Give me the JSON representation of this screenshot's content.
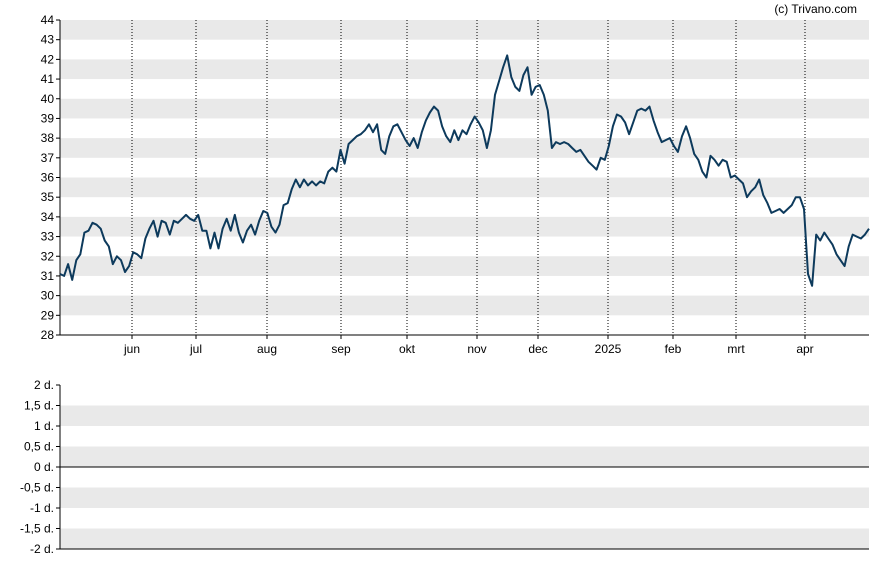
{
  "credit": "(c) Trivano.com",
  "colors": {
    "band": "#e9e9e9",
    "line": "#0d3a5c",
    "axis": "#000000",
    "grid": "#000000"
  },
  "chart_data": [
    {
      "type": "line",
      "xlabel": "",
      "ylabel": "",
      "ylim": [
        28,
        44
      ],
      "y_ticks": [
        28,
        29,
        30,
        31,
        32,
        33,
        34,
        35,
        36,
        37,
        38,
        39,
        40,
        41,
        42,
        43,
        44
      ],
      "x_ticks": [
        "jun",
        "jul",
        "aug",
        "sep",
        "okt",
        "nov",
        "dec",
        "2025",
        "feb",
        "mrt",
        "apr"
      ],
      "grid": "horizontal bands + dotted vertical lines at months",
      "series": [
        {
          "values": [
            31.1,
            31.0,
            31.6,
            30.8,
            31.8,
            32.1,
            33.2,
            33.3,
            33.7,
            33.6,
            33.4,
            32.8,
            32.5,
            31.6,
            32.0,
            31.8,
            31.2,
            31.5,
            32.2,
            32.1,
            31.9,
            32.9,
            33.4,
            33.8,
            33.0,
            33.8,
            33.7,
            33.1,
            33.8,
            33.7,
            33.9,
            34.1,
            33.9,
            33.8,
            34.1,
            33.3,
            33.3,
            32.4,
            33.2,
            32.4,
            33.4,
            33.9,
            33.3,
            34.1,
            33.2,
            32.7,
            33.3,
            33.6,
            33.1,
            33.8,
            34.3,
            34.2,
            33.5,
            33.2,
            33.6,
            34.6,
            34.7,
            35.4,
            35.9,
            35.5,
            35.9,
            35.6,
            35.8,
            35.6,
            35.8,
            35.7,
            36.3,
            36.5,
            36.3,
            37.4,
            36.7,
            37.7,
            37.9,
            38.1,
            38.2,
            38.4,
            38.7,
            38.3,
            38.7,
            37.4,
            37.2,
            38.1,
            38.6,
            38.7,
            38.3,
            37.9,
            37.6,
            38.0,
            37.5,
            38.3,
            38.9,
            39.3,
            39.6,
            39.4,
            38.6,
            38.1,
            37.8,
            38.4,
            37.9,
            38.4,
            38.2,
            38.7,
            39.1,
            38.8,
            38.4,
            37.5,
            38.4,
            40.2,
            40.9,
            41.6,
            42.2,
            41.1,
            40.6,
            40.4,
            41.2,
            41.6,
            40.2,
            40.6,
            40.7,
            40.2,
            39.4,
            37.5,
            37.8,
            37.7,
            37.8,
            37.7,
            37.5,
            37.3,
            37.4,
            37.1,
            36.8,
            36.6,
            36.4,
            37.0,
            36.9,
            37.6,
            38.6,
            39.2,
            39.1,
            38.8,
            38.2,
            38.8,
            39.4,
            39.5,
            39.4,
            39.6,
            38.9,
            38.3,
            37.8,
            37.9,
            38.0,
            37.6,
            37.3,
            38.1,
            38.6,
            38.0,
            37.2,
            36.9,
            36.3,
            36.0,
            37.1,
            36.9,
            36.6,
            36.9,
            36.8,
            36.0,
            36.1,
            35.9,
            35.7,
            35.0,
            35.3,
            35.5,
            35.9,
            35.1,
            34.7,
            34.2,
            34.3,
            34.4,
            34.2,
            34.4,
            34.6,
            35.0,
            35.0,
            34.4,
            31.1,
            30.5,
            33.1,
            32.8,
            33.2,
            32.9,
            32.6,
            32.1,
            31.8,
            31.5,
            32.5,
            33.1,
            33.0,
            32.9,
            33.1,
            33.4
          ]
        }
      ]
    },
    {
      "type": "line",
      "xlabel": "",
      "ylabel": "",
      "ylim": [
        -2,
        2
      ],
      "y_ticks": [
        "2 d.",
        "1,5 d.",
        "1 d.",
        "0,5 d.",
        "0 d.",
        "-0,5 d.",
        "-1 d.",
        "-1,5 d.",
        "-2 d."
      ],
      "baseline": 0,
      "grid": "horizontal bands",
      "series": []
    }
  ]
}
